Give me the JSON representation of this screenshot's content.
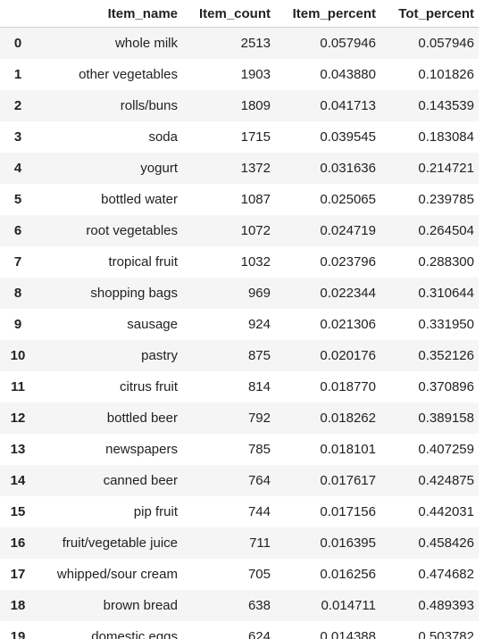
{
  "table": {
    "columns": [
      "",
      "Item_name",
      "Item_count",
      "Item_percent",
      "Tot_percent"
    ],
    "rows": [
      {
        "index": "0",
        "item_name": "whole milk",
        "item_count": "2513",
        "item_percent": "0.057946",
        "tot_percent": "0.057946"
      },
      {
        "index": "1",
        "item_name": "other vegetables",
        "item_count": "1903",
        "item_percent": "0.043880",
        "tot_percent": "0.101826"
      },
      {
        "index": "2",
        "item_name": "rolls/buns",
        "item_count": "1809",
        "item_percent": "0.041713",
        "tot_percent": "0.143539"
      },
      {
        "index": "3",
        "item_name": "soda",
        "item_count": "1715",
        "item_percent": "0.039545",
        "tot_percent": "0.183084"
      },
      {
        "index": "4",
        "item_name": "yogurt",
        "item_count": "1372",
        "item_percent": "0.031636",
        "tot_percent": "0.214721"
      },
      {
        "index": "5",
        "item_name": "bottled water",
        "item_count": "1087",
        "item_percent": "0.025065",
        "tot_percent": "0.239785"
      },
      {
        "index": "6",
        "item_name": "root vegetables",
        "item_count": "1072",
        "item_percent": "0.024719",
        "tot_percent": "0.264504"
      },
      {
        "index": "7",
        "item_name": "tropical fruit",
        "item_count": "1032",
        "item_percent": "0.023796",
        "tot_percent": "0.288300"
      },
      {
        "index": "8",
        "item_name": "shopping bags",
        "item_count": "969",
        "item_percent": "0.022344",
        "tot_percent": "0.310644"
      },
      {
        "index": "9",
        "item_name": "sausage",
        "item_count": "924",
        "item_percent": "0.021306",
        "tot_percent": "0.331950"
      },
      {
        "index": "10",
        "item_name": "pastry",
        "item_count": "875",
        "item_percent": "0.020176",
        "tot_percent": "0.352126"
      },
      {
        "index": "11",
        "item_name": "citrus fruit",
        "item_count": "814",
        "item_percent": "0.018770",
        "tot_percent": "0.370896"
      },
      {
        "index": "12",
        "item_name": "bottled beer",
        "item_count": "792",
        "item_percent": "0.018262",
        "tot_percent": "0.389158"
      },
      {
        "index": "13",
        "item_name": "newspapers",
        "item_count": "785",
        "item_percent": "0.018101",
        "tot_percent": "0.407259"
      },
      {
        "index": "14",
        "item_name": "canned beer",
        "item_count": "764",
        "item_percent": "0.017617",
        "tot_percent": "0.424875"
      },
      {
        "index": "15",
        "item_name": "pip fruit",
        "item_count": "744",
        "item_percent": "0.017156",
        "tot_percent": "0.442031"
      },
      {
        "index": "16",
        "item_name": "fruit/vegetable juice",
        "item_count": "711",
        "item_percent": "0.016395",
        "tot_percent": "0.458426"
      },
      {
        "index": "17",
        "item_name": "whipped/sour cream",
        "item_count": "705",
        "item_percent": "0.016256",
        "tot_percent": "0.474682"
      },
      {
        "index": "18",
        "item_name": "brown bread",
        "item_count": "638",
        "item_percent": "0.014711",
        "tot_percent": "0.489393"
      },
      {
        "index": "19",
        "item_name": "domestic eggs",
        "item_count": "624",
        "item_percent": "0.014388",
        "tot_percent": "0.503782"
      }
    ]
  },
  "colors": {
    "header_border": "#cfcfcf",
    "stripe_row": "#f5f5f5",
    "text": "#222222"
  }
}
